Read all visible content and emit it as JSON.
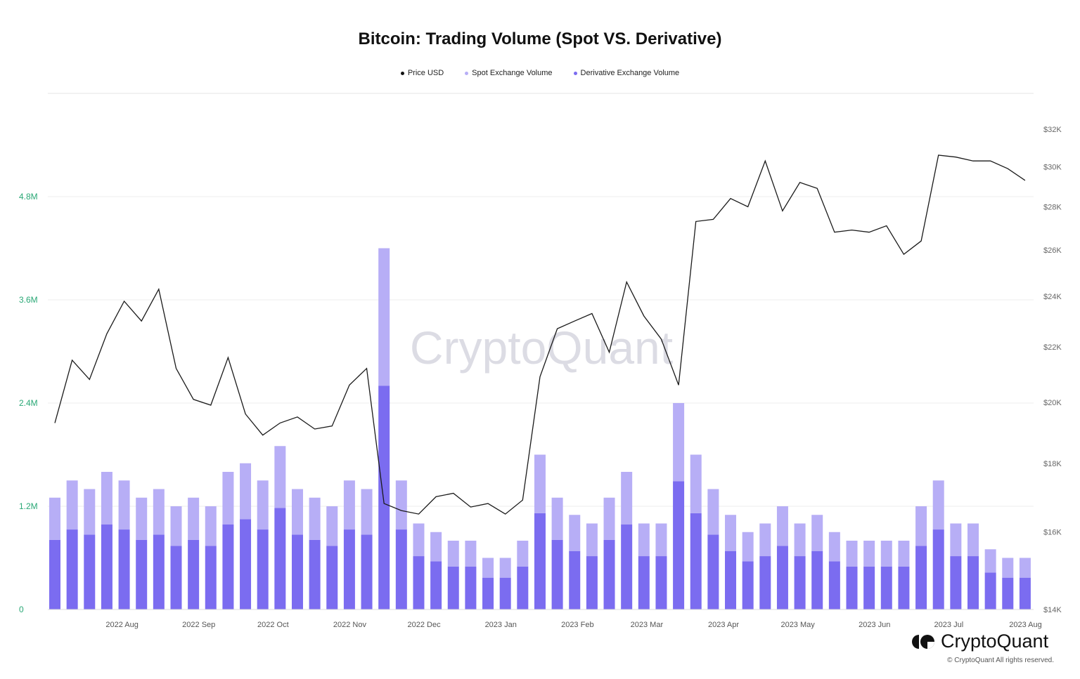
{
  "chart_data": {
    "type": "bar+line",
    "title": "Bitcoin: Trading Volume (Spot VS. Derivative)",
    "legend_placement": "top",
    "grid": true,
    "legend": [
      {
        "name": "Price USD",
        "color": "#111111"
      },
      {
        "name": "Spot Exchange Volume",
        "color": "#b7aef6"
      },
      {
        "name": "Derivative Exchange Volume",
        "color": "#7b6cf0"
      }
    ],
    "x_ticks": [
      "2022 Aug",
      "2022 Sep",
      "2022 Oct",
      "2022 Nov",
      "2022 Dec",
      "2023 Jan",
      "2023 Feb",
      "2023 Mar",
      "2023 Apr",
      "2023 May",
      "2023 Jun",
      "2023 Jul",
      "2023 Aug"
    ],
    "x_tick_dates": [
      "2022-08-01",
      "2022-09-01",
      "2022-10-01",
      "2022-11-01",
      "2022-12-01",
      "2023-01-01",
      "2023-02-01",
      "2023-03-01",
      "2023-04-01",
      "2023-05-01",
      "2023-06-01",
      "2023-07-01",
      "2023-08-01"
    ],
    "xlim": [
      "2022-07-02",
      "2023-08-02"
    ],
    "y_left": {
      "ticks": [
        0,
        1200000,
        2400000,
        3600000,
        4800000
      ],
      "tick_labels": [
        "0",
        "1.2M",
        "2.4M",
        "3.6M",
        "4.8M"
      ],
      "color": "#2aa876"
    },
    "y_right": {
      "scale": "log",
      "ylim": [
        14000,
        32000
      ],
      "ticks": [
        14000,
        16000,
        18000,
        20000,
        22000,
        24000,
        26000,
        28000,
        30000,
        32000
      ],
      "tick_labels": [
        "$14K",
        "$16K",
        "$18K",
        "$20K",
        "$22K",
        "$24K",
        "$26K",
        "$28K",
        "$30K",
        "$32K"
      ]
    },
    "x": [
      "2022-07-02",
      "2022-07-09",
      "2022-07-16",
      "2022-07-23",
      "2022-07-30",
      "2022-08-06",
      "2022-08-13",
      "2022-08-20",
      "2022-08-27",
      "2022-09-03",
      "2022-09-10",
      "2022-09-17",
      "2022-09-24",
      "2022-10-01",
      "2022-10-08",
      "2022-10-15",
      "2022-10-22",
      "2022-10-29",
      "2022-11-05",
      "2022-11-12",
      "2022-11-19",
      "2022-11-26",
      "2022-12-03",
      "2022-12-10",
      "2022-12-17",
      "2022-12-24",
      "2022-12-31",
      "2023-01-07",
      "2023-01-14",
      "2023-01-21",
      "2023-01-28",
      "2023-02-04",
      "2023-02-11",
      "2023-02-18",
      "2023-02-25",
      "2023-03-04",
      "2023-03-11",
      "2023-03-18",
      "2023-03-25",
      "2023-04-01",
      "2023-04-08",
      "2023-04-15",
      "2023-04-22",
      "2023-04-29",
      "2023-05-06",
      "2023-05-13",
      "2023-05-20",
      "2023-05-27",
      "2023-06-03",
      "2023-06-10",
      "2023-06-17",
      "2023-06-24",
      "2023-07-01",
      "2023-07-08",
      "2023-07-15",
      "2023-07-22",
      "2023-07-29"
    ],
    "series": [
      {
        "name": "Price USD",
        "axis": "right",
        "type": "line",
        "values": [
          19300,
          21500,
          20800,
          22500,
          23800,
          23000,
          24300,
          21200,
          20100,
          19900,
          21600,
          19600,
          18900,
          19300,
          19500,
          19100,
          19200,
          20600,
          21200,
          16800,
          16600,
          16500,
          17000,
          17100,
          16700,
          16800,
          16500,
          16900,
          20900,
          22700,
          23000,
          23300,
          21800,
          24600,
          23200,
          22300,
          20600,
          27300,
          27400,
          28400,
          28000,
          30300,
          27800,
          29200,
          28900,
          26800,
          26900,
          26800,
          27100,
          25800,
          26400,
          30600,
          30500,
          30300,
          30300,
          29900,
          29300
        ]
      },
      {
        "name": "Spot Exchange Volume",
        "axis": "left",
        "type": "bar",
        "values": [
          490000,
          570000,
          530000,
          610000,
          570000,
          490000,
          530000,
          460000,
          490000,
          460000,
          610000,
          650000,
          570000,
          720000,
          530000,
          490000,
          460000,
          570000,
          530000,
          1600000,
          570000,
          380000,
          340000,
          300000,
          300000,
          230000,
          230000,
          300000,
          680000,
          490000,
          420000,
          380000,
          490000,
          610000,
          380000,
          380000,
          910000,
          680000,
          530000,
          420000,
          340000,
          380000,
          460000,
          380000,
          420000,
          340000,
          300000,
          300000,
          300000,
          300000,
          460000,
          570000,
          380000,
          380000,
          270000,
          230000,
          230000
        ]
      },
      {
        "name": "Derivative Exchange Volume",
        "axis": "left",
        "type": "bar",
        "values": [
          810000,
          930000,
          870000,
          990000,
          930000,
          810000,
          870000,
          740000,
          810000,
          740000,
          990000,
          1050000,
          930000,
          1180000,
          870000,
          810000,
          740000,
          930000,
          870000,
          2600000,
          930000,
          620000,
          560000,
          500000,
          500000,
          370000,
          370000,
          500000,
          1120000,
          810000,
          680000,
          620000,
          810000,
          990000,
          620000,
          620000,
          1490000,
          1120000,
          870000,
          680000,
          560000,
          620000,
          740000,
          620000,
          680000,
          560000,
          500000,
          500000,
          500000,
          500000,
          740000,
          930000,
          620000,
          620000,
          430000,
          370000,
          370000
        ]
      }
    ]
  },
  "watermark": "CryptoQuant",
  "footer": {
    "brand": "CryptoQuant",
    "copyright": "© CryptoQuant All rights reserved."
  }
}
